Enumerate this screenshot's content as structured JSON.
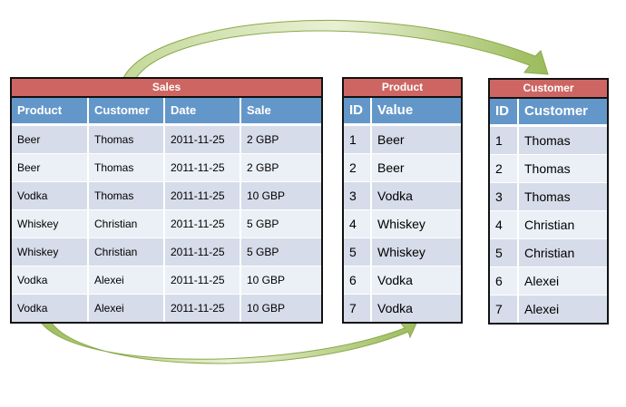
{
  "arrow_color": "#9bbb59",
  "sales": {
    "title": "Sales",
    "columns": [
      "Product",
      "Customer",
      "Date",
      "Sale"
    ],
    "rows": [
      [
        "Beer",
        "Thomas",
        "2011-11-25",
        "2 GBP"
      ],
      [
        "Beer",
        "Thomas",
        "2011-11-25",
        "2 GBP"
      ],
      [
        "Vodka",
        "Thomas",
        "2011-11-25",
        "10 GBP"
      ],
      [
        "Whiskey",
        "Christian",
        "2011-11-25",
        "5 GBP"
      ],
      [
        "Whiskey",
        "Christian",
        "2011-11-25",
        "5 GBP"
      ],
      [
        "Vodka",
        "Alexei",
        "2011-11-25",
        "10 GBP"
      ],
      [
        "Vodka",
        "Alexei",
        "2011-11-25",
        "10 GBP"
      ]
    ]
  },
  "product": {
    "title": "Product",
    "columns": [
      "ID",
      "Value"
    ],
    "rows": [
      [
        "1",
        "Beer"
      ],
      [
        "2",
        "Beer"
      ],
      [
        "3",
        "Vodka"
      ],
      [
        "4",
        "Whiskey"
      ],
      [
        "5",
        "Whiskey"
      ],
      [
        "6",
        "Vodka"
      ],
      [
        "7",
        "Vodka"
      ]
    ]
  },
  "customer": {
    "title": "Customer",
    "columns": [
      "ID",
      "Customer"
    ],
    "rows": [
      [
        "1",
        "Thomas"
      ],
      [
        "2",
        "Thomas"
      ],
      [
        "3",
        "Thomas"
      ],
      [
        "4",
        "Christian"
      ],
      [
        "5",
        "Christian"
      ],
      [
        "6",
        "Alexei"
      ],
      [
        "7",
        "Alexei"
      ]
    ]
  }
}
